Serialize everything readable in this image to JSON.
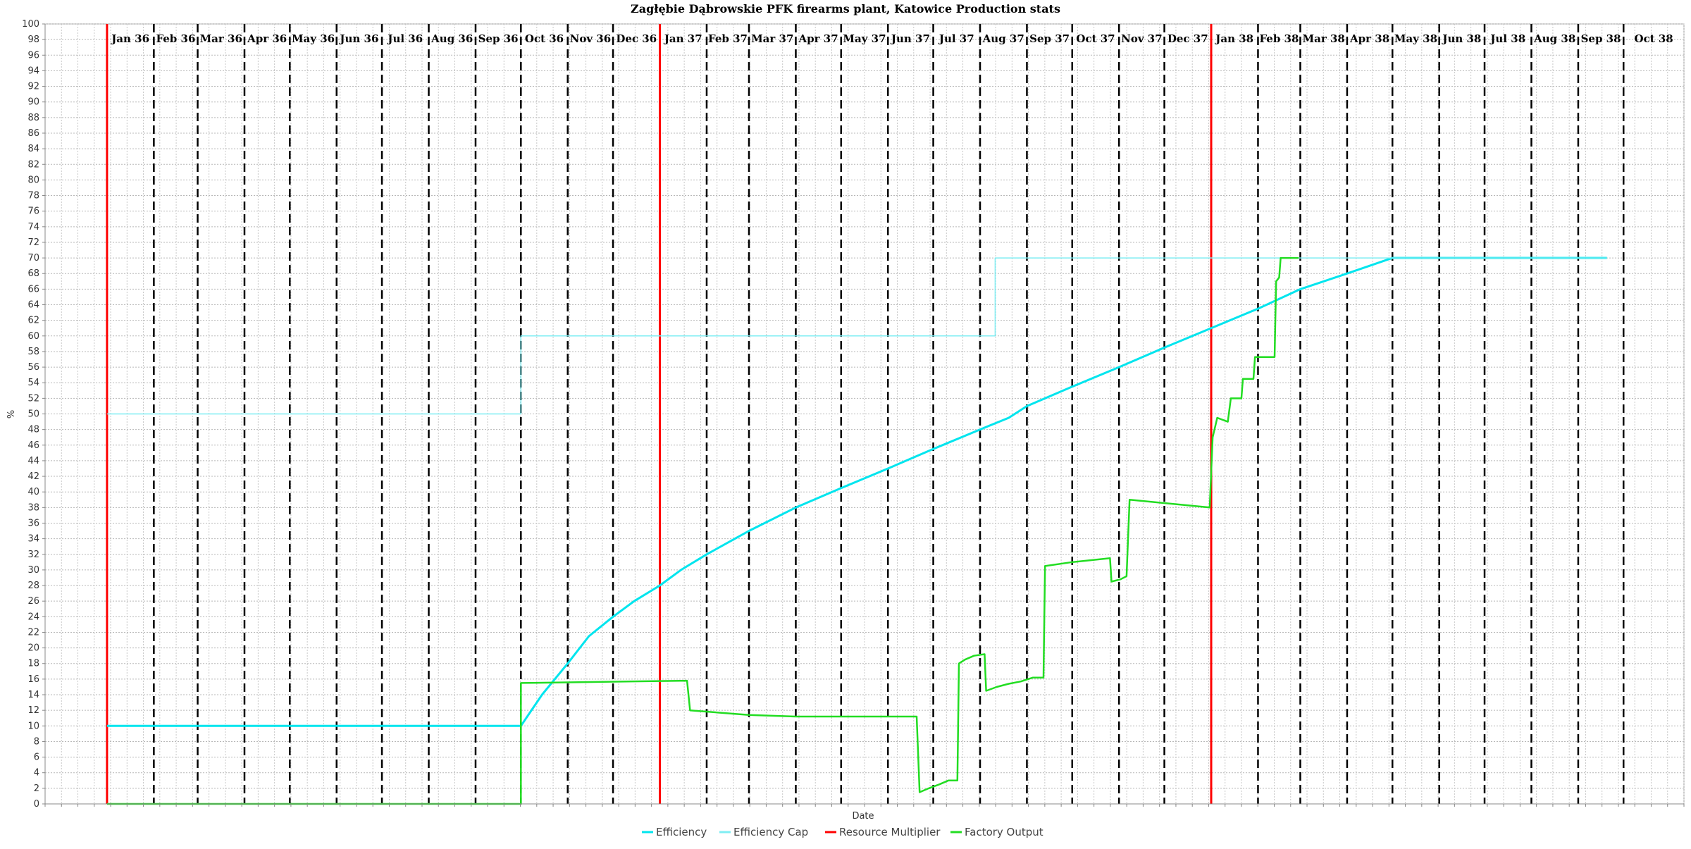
{
  "chart_data": {
    "type": "line",
    "title": "Zagłębie Dąbrowskie PFK firearms plant, Katowice Production stats",
    "xlabel": "Date",
    "ylabel": "%",
    "ylim": [
      0,
      100
    ],
    "y_tick_step": 2,
    "x_range": [
      "1935-11-21",
      "1938-11-10"
    ],
    "grid": true,
    "legend_position": "bottom-center",
    "month_labels": [
      "Jan 36",
      "Feb 36",
      "Mar 36",
      "Apr 36",
      "May 36",
      "Jun 36",
      "Jul 36",
      "Aug 36",
      "Sep 36",
      "Oct 36",
      "Nov 36",
      "Dec 36",
      "Jan 37",
      "Feb 37",
      "Mar 37",
      "Apr 37",
      "May 37",
      "Jun 37",
      "Jul 37",
      "Aug 37",
      "Sep 37",
      "Oct 37",
      "Nov 37",
      "Dec 37",
      "Jan 38",
      "Feb 38",
      "Mar 38",
      "Apr 38",
      "May 38",
      "Jun 38",
      "Jul 38",
      "Aug 38",
      "Sep 38",
      "Oct 38"
    ],
    "month_starts": [
      "1936-01-01",
      "1936-02-01",
      "1936-03-01",
      "1936-04-01",
      "1936-05-01",
      "1936-06-01",
      "1936-07-01",
      "1936-08-01",
      "1936-09-01",
      "1936-10-01",
      "1936-11-01",
      "1936-12-01",
      "1937-01-01",
      "1937-02-01",
      "1937-03-01",
      "1937-04-01",
      "1937-05-01",
      "1937-06-01",
      "1937-07-01",
      "1937-08-01",
      "1937-09-01",
      "1937-10-01",
      "1937-11-01",
      "1937-12-01",
      "1938-01-01",
      "1938-02-01",
      "1938-03-01",
      "1938-04-01",
      "1938-05-01",
      "1938-06-01",
      "1938-07-01",
      "1938-08-01",
      "1938-09-01",
      "1938-10-01"
    ],
    "resource_multiplier_dates": [
      "1936-01-01",
      "1937-01-01",
      "1938-01-01"
    ],
    "series": [
      {
        "name": "Efficiency",
        "color": "#00e5ee",
        "points": [
          [
            "1936-01-01",
            10
          ],
          [
            "1936-10-01",
            10
          ],
          [
            "1936-10-15",
            14
          ],
          [
            "1936-11-01",
            18
          ],
          [
            "1936-11-15",
            21.5
          ],
          [
            "1936-12-01",
            24
          ],
          [
            "1936-12-15",
            26
          ],
          [
            "1937-01-01",
            28
          ],
          [
            "1937-01-15",
            30
          ],
          [
            "1937-02-01",
            32
          ],
          [
            "1937-03-01",
            35
          ],
          [
            "1937-04-01",
            38
          ],
          [
            "1937-05-01",
            40.5
          ],
          [
            "1937-06-01",
            43
          ],
          [
            "1937-07-01",
            45.5
          ],
          [
            "1937-08-01",
            48
          ],
          [
            "1937-08-20",
            49.5
          ],
          [
            "1937-09-01",
            51
          ],
          [
            "1937-10-01",
            53.5
          ],
          [
            "1937-11-01",
            56
          ],
          [
            "1937-12-01",
            58.5
          ],
          [
            "1938-01-01",
            61
          ],
          [
            "1938-02-01",
            63.5
          ],
          [
            "1938-03-01",
            66
          ],
          [
            "1938-04-01",
            68
          ],
          [
            "1938-05-01",
            70
          ],
          [
            "1938-09-20",
            70
          ]
        ]
      },
      {
        "name": "Efficiency Cap",
        "color": "#7feef3",
        "points": [
          [
            "1936-01-01",
            50
          ],
          [
            "1936-10-01",
            50
          ],
          [
            "1936-10-01",
            60
          ],
          [
            "1937-08-11",
            60
          ],
          [
            "1937-08-11",
            70
          ],
          [
            "1938-09-20",
            70
          ]
        ]
      },
      {
        "name": "Resource Multiplier",
        "color": "#ff0000",
        "points": []
      },
      {
        "name": "Factory Output",
        "color": "#22dd22",
        "points": [
          [
            "1936-01-01",
            0
          ],
          [
            "1936-10-01",
            0
          ],
          [
            "1936-10-01",
            15.5
          ],
          [
            "1937-01-19",
            15.8
          ],
          [
            "1937-01-21",
            12
          ],
          [
            "1937-03-01",
            11.4
          ],
          [
            "1937-04-01",
            11.2
          ],
          [
            "1937-06-20",
            11.2
          ],
          [
            "1937-06-22",
            1.5
          ],
          [
            "1937-06-28",
            2
          ],
          [
            "1937-07-05",
            2.5
          ],
          [
            "1937-07-11",
            3
          ],
          [
            "1937-07-17",
            3
          ],
          [
            "1937-07-18",
            18
          ],
          [
            "1937-07-22",
            18.5
          ],
          [
            "1937-07-28",
            19
          ],
          [
            "1937-08-04",
            19.2
          ],
          [
            "1937-08-05",
            14.5
          ],
          [
            "1937-08-12",
            15
          ],
          [
            "1937-08-20",
            15.4
          ],
          [
            "1937-08-28",
            15.7
          ],
          [
            "1937-09-05",
            16.2
          ],
          [
            "1937-09-12",
            16.2
          ],
          [
            "1937-09-13",
            30.5
          ],
          [
            "1937-10-01",
            31
          ],
          [
            "1937-10-26",
            31.5
          ],
          [
            "1937-10-27",
            28.5
          ],
          [
            "1937-11-02",
            28.8
          ],
          [
            "1937-11-06",
            29.2
          ],
          [
            "1937-11-08",
            39
          ],
          [
            "1937-12-31",
            38
          ],
          [
            "1938-01-02",
            47
          ],
          [
            "1938-01-05",
            49.5
          ],
          [
            "1938-01-12",
            49
          ],
          [
            "1938-01-14",
            52
          ],
          [
            "1938-01-21",
            52
          ],
          [
            "1938-01-22",
            54.5
          ],
          [
            "1938-01-29",
            54.5
          ],
          [
            "1938-01-30",
            57.3
          ],
          [
            "1938-02-12",
            57.3
          ],
          [
            "1938-02-13",
            67
          ],
          [
            "1938-02-15",
            67.5
          ],
          [
            "1938-02-16",
            70
          ],
          [
            "1938-02-28",
            70
          ]
        ]
      }
    ]
  }
}
